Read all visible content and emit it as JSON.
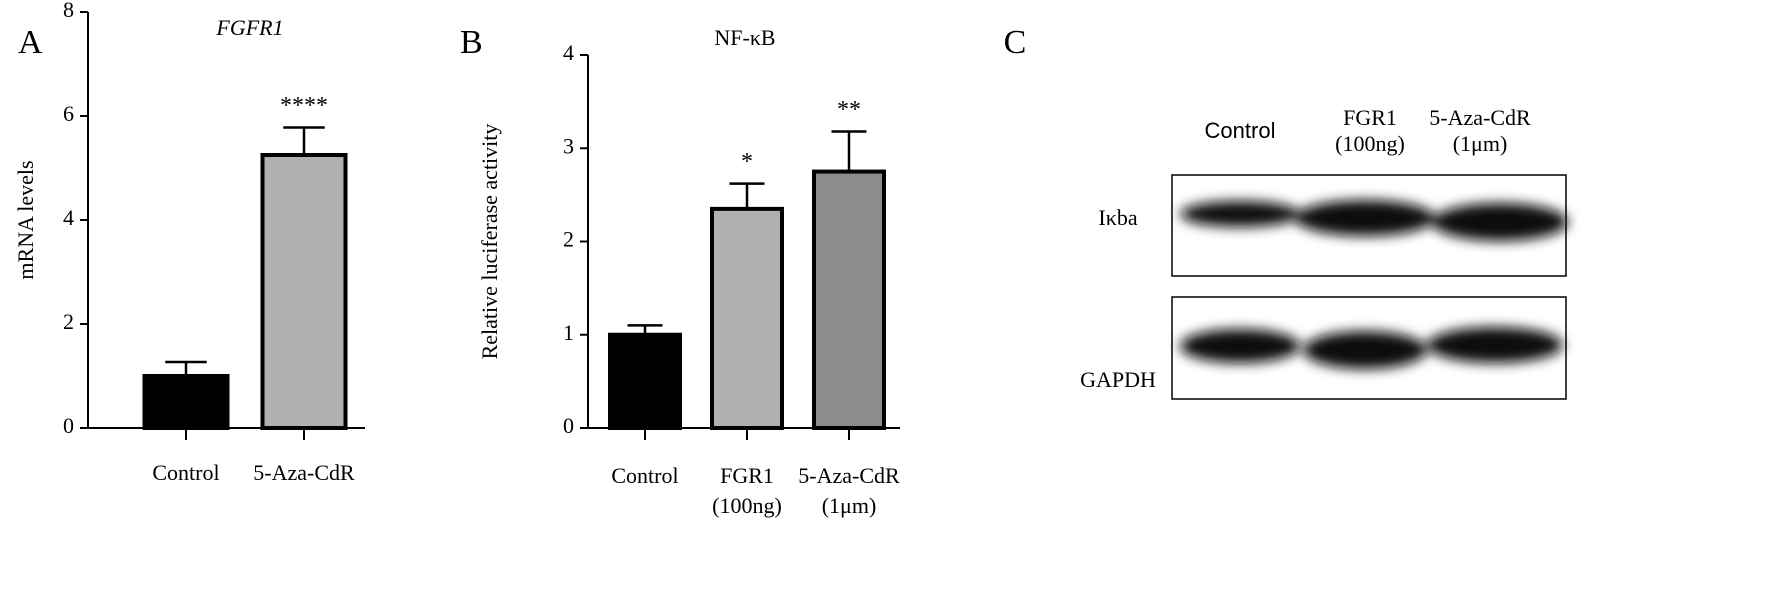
{
  "chart_data": [
    {
      "type": "bar",
      "panel_label": "A",
      "title": "FGFR1",
      "y_label": "mRNA levels",
      "categories": [
        [
          "Control"
        ],
        [
          "5-Aza-CdR"
        ]
      ],
      "values": [
        1.0,
        5.25
      ],
      "errors": [
        0.27,
        0.53
      ],
      "significance": [
        null,
        "****"
      ],
      "colors": [
        "#000000",
        "#b0b0b0"
      ],
      "ylim": [
        0,
        8
      ],
      "yticks": [
        0,
        2,
        4,
        6,
        8
      ]
    },
    {
      "type": "bar",
      "panel_label": "B",
      "title": "NF-κB",
      "y_label": "Relative luciferase activity",
      "categories": [
        [
          "Control"
        ],
        [
          "FGR1",
          "(100ng)"
        ],
        [
          "5-Aza-CdR",
          "(1μm)"
        ]
      ],
      "values": [
        1.0,
        2.35,
        2.75
      ],
      "errors": [
        0.1,
        0.27,
        0.43
      ],
      "significance": [
        null,
        "*",
        "**"
      ],
      "colors": [
        "#000000",
        "#b0b0b0",
        "#8c8c8c"
      ],
      "ylim": [
        0,
        4
      ],
      "yticks": [
        0,
        1,
        2,
        3,
        4
      ]
    }
  ],
  "blot": {
    "panel_label": "C",
    "lanes": [
      [
        "Control"
      ],
      [
        "FGR1",
        "(100ng)"
      ],
      [
        "5-Aza-CdR",
        "(1μm)"
      ]
    ],
    "rows": [
      "Iκba",
      "GAPDH"
    ]
  }
}
